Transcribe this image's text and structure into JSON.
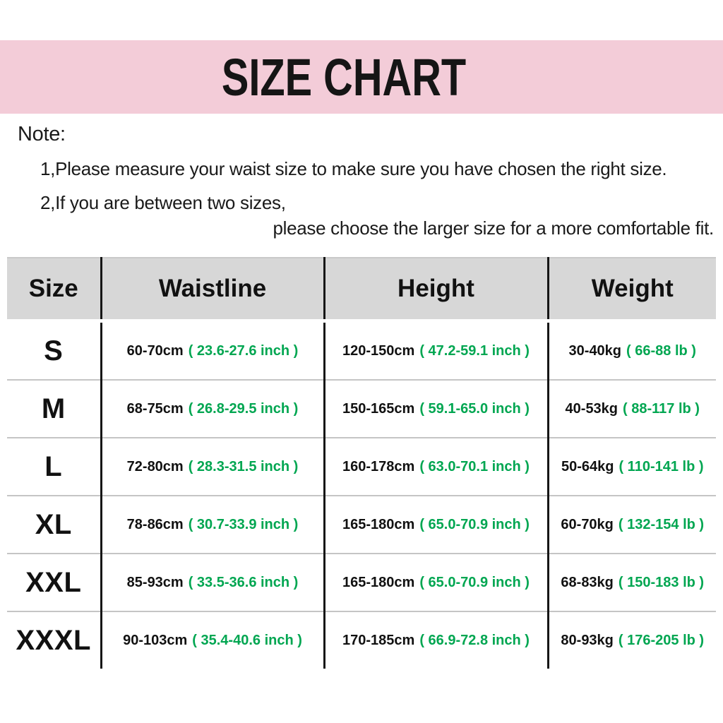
{
  "banner": {
    "title": "SIZE CHART",
    "background": "#f3ccd8"
  },
  "note": {
    "label": "Note:",
    "line1": "1,Please measure your waist size to make sure you have chosen the right size.",
    "line2": "2,If you are between two sizes,",
    "line2_continuation": "please choose the larger size for a more comfortable fit."
  },
  "table": {
    "header_background": "#d7d7d7",
    "accent_green": "#00a651",
    "columns": [
      "Size",
      "Waistline",
      "Height",
      "Weight"
    ],
    "rows": [
      {
        "size": "S",
        "waistline_cm": "60-70cm",
        "waistline_inch": "( 23.6-27.6 inch )",
        "height_cm": "120-150cm",
        "height_inch": "( 47.2-59.1 inch )",
        "weight_kg": "30-40kg",
        "weight_lb": "( 66-88 lb )"
      },
      {
        "size": "M",
        "waistline_cm": "68-75cm",
        "waistline_inch": "( 26.8-29.5 inch )",
        "height_cm": "150-165cm",
        "height_inch": "( 59.1-65.0 inch )",
        "weight_kg": "40-53kg",
        "weight_lb": "( 88-117 lb )"
      },
      {
        "size": "L",
        "waistline_cm": "72-80cm",
        "waistline_inch": "( 28.3-31.5 inch )",
        "height_cm": "160-178cm",
        "height_inch": "( 63.0-70.1 inch )",
        "weight_kg": "50-64kg",
        "weight_lb": "( 110-141 lb )"
      },
      {
        "size": "XL",
        "waistline_cm": "78-86cm",
        "waistline_inch": "( 30.7-33.9 inch )",
        "height_cm": "165-180cm",
        "height_inch": "( 65.0-70.9 inch )",
        "weight_kg": "60-70kg",
        "weight_lb": "( 132-154 lb )"
      },
      {
        "size": "XXL",
        "waistline_cm": "85-93cm",
        "waistline_inch": "( 33.5-36.6 inch )",
        "height_cm": "165-180cm",
        "height_inch": "( 65.0-70.9 inch )",
        "weight_kg": "68-83kg",
        "weight_lb": "( 150-183 lb )"
      },
      {
        "size": "XXXL",
        "waistline_cm": "90-103cm",
        "waistline_inch": "( 35.4-40.6 inch )",
        "height_cm": "170-185cm",
        "height_inch": "( 66.9-72.8 inch )",
        "weight_kg": "80-93kg",
        "weight_lb": "( 176-205 lb )"
      }
    ]
  }
}
